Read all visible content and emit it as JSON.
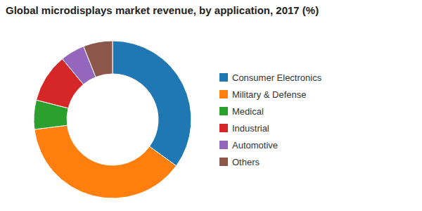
{
  "chart_data": {
    "type": "donut",
    "title": "Global microdisplays market revenue, by application, 2017 (%)",
    "categories": [
      "Consumer Electronics",
      "Military & Defense",
      "Medical",
      "Industrial",
      "Automotive",
      "Others"
    ],
    "values": [
      35,
      38,
      6,
      10,
      5,
      6
    ],
    "legend": "right"
  }
}
